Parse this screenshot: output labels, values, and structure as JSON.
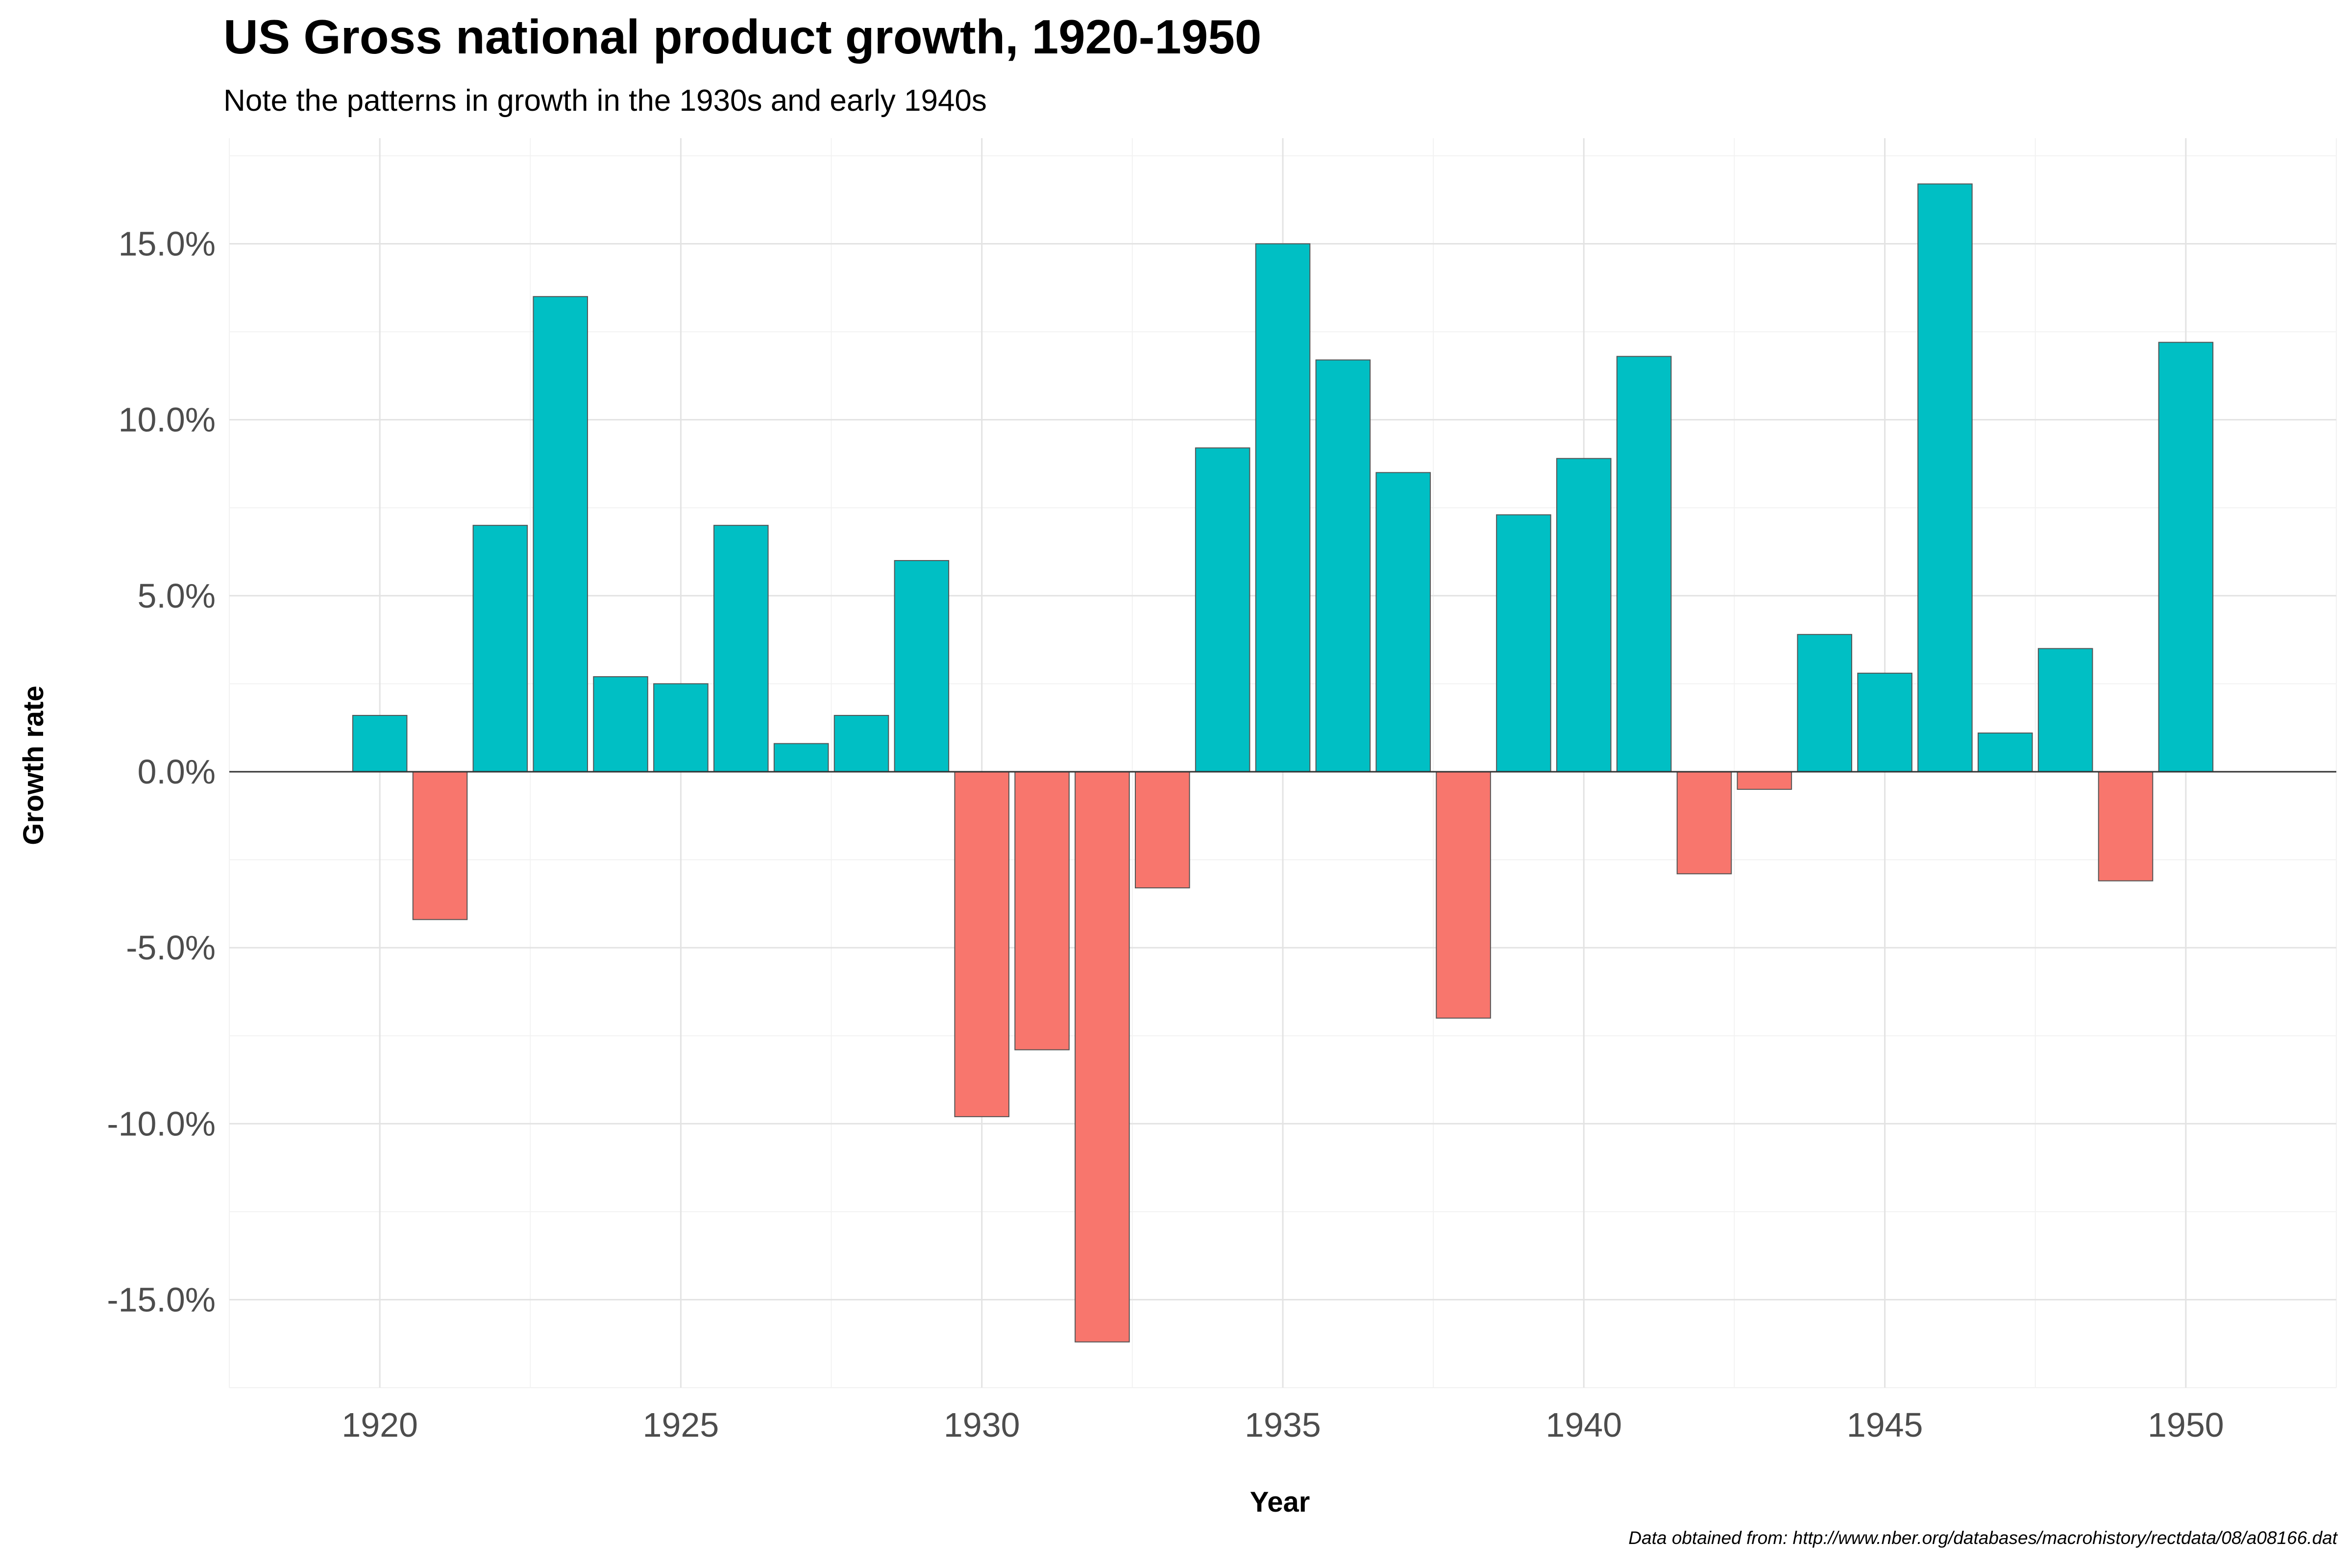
{
  "chart_data": {
    "type": "bar",
    "title": "US Gross national product growth, 1920-1950",
    "subtitle": "Note the patterns in growth in the 1930s and early 1940s",
    "caption": "Data obtained from: http://www.nber.org/databases/macrohistory/rectdata/08/a08166.dat",
    "xlabel": "Year",
    "ylabel": "Growth rate",
    "x": [
      1920,
      1921,
      1922,
      1923,
      1924,
      1925,
      1926,
      1927,
      1928,
      1929,
      1930,
      1931,
      1932,
      1933,
      1934,
      1935,
      1936,
      1937,
      1938,
      1939,
      1940,
      1941,
      1942,
      1943,
      1944,
      1945,
      1946,
      1947,
      1948,
      1949,
      1950
    ],
    "values": [
      1.6,
      -4.2,
      7.0,
      13.5,
      2.7,
      2.5,
      7.0,
      0.8,
      1.6,
      6.0,
      -9.8,
      -7.9,
      -16.2,
      -3.3,
      9.2,
      15.0,
      11.7,
      8.5,
      -7.0,
      7.3,
      8.9,
      11.8,
      -2.9,
      -0.5,
      3.9,
      2.8,
      16.7,
      1.1,
      3.5,
      -3.1,
      12.2
    ],
    "xlim": [
      1917.5,
      1952.5
    ],
    "ylim": [
      -17.5,
      18.0
    ],
    "x_ticks": [
      1920,
      1925,
      1930,
      1935,
      1940,
      1945,
      1950
    ],
    "y_ticks": [
      -15,
      -10,
      -5,
      0,
      5,
      10,
      15
    ],
    "y_tick_labels": [
      "-15.0%",
      "-10.0%",
      "-5.0%",
      "0.0%",
      "5.0%",
      "10.0%",
      "15.0%"
    ],
    "grid": true,
    "legend": false,
    "colors": {
      "positive": "#00BFC4",
      "negative": "#F8766D",
      "bar_outline": "#555555",
      "grid_major": "#e3e3e3",
      "grid_minor": "#f2f2f2",
      "zero_line": "#333333",
      "tick_label": "#4d4d4d"
    }
  }
}
